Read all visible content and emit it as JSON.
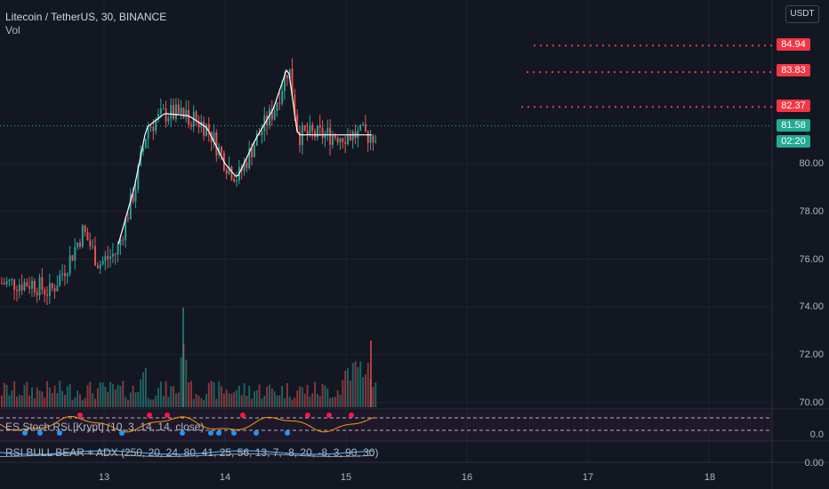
{
  "header": {
    "title": "Litecoin / TetherUS, 30, BINANCE",
    "vol_label": "Vol"
  },
  "currency_button": "USDT",
  "indicators": {
    "stoch_rsi": "ES Stoch RSi [Krypt] (10, 3, 14, 14, close)",
    "rsi_adx": "RSI BULL BEAR + ADX (250, 20, 24, 80, 41, 25, 56, 13, 7, -8, 20, -8, 3, 90, 30)"
  },
  "price_axis": {
    "labels": [
      "80.00",
      "78.00",
      "76.00",
      "74.00",
      "72.00",
      "70.00"
    ],
    "pane2_label": "0.0",
    "pane3_label": "0.00"
  },
  "time_axis": {
    "labels": [
      "13",
      "14",
      "15",
      "16",
      "17",
      "18"
    ]
  },
  "price_tags": {
    "level_1": "84.94",
    "level_2": "83.83",
    "level_3": "82.37",
    "current_price": "81.58",
    "countdown": "02:20"
  },
  "colors": {
    "background": "#131722",
    "up": "#26a69a",
    "down": "#ef5350",
    "level_line": "#f23645",
    "current": "#22ab94",
    "grid": "#1e222d",
    "text": "#d1d4dc"
  },
  "chart_data": {
    "type": "candlestick",
    "symbol": "Litecoin / TetherUS",
    "timeframe": "30",
    "exchange": "BINANCE",
    "x_ticks": [
      "13",
      "14",
      "15",
      "16",
      "17",
      "18"
    ],
    "y_range": [
      69.8,
      84.9
    ],
    "y_ticks": [
      70,
      72,
      74,
      76,
      78,
      80
    ],
    "resistance_levels": [
      84.94,
      83.83,
      82.37
    ],
    "last_price": 81.58,
    "approx_path": [
      {
        "x": 12.4,
        "y": 75.0
      },
      {
        "x": 12.55,
        "y": 74.6
      },
      {
        "x": 12.7,
        "y": 75.9
      },
      {
        "x": 12.82,
        "y": 77.2
      },
      {
        "x": 12.95,
        "y": 75.8
      },
      {
        "x": 13.1,
        "y": 76.3
      },
      {
        "x": 13.25,
        "y": 79.0
      },
      {
        "x": 13.35,
        "y": 81.5
      },
      {
        "x": 13.5,
        "y": 82.1
      },
      {
        "x": 13.7,
        "y": 82.0
      },
      {
        "x": 13.85,
        "y": 81.5
      },
      {
        "x": 14.0,
        "y": 80.0
      },
      {
        "x": 14.1,
        "y": 79.4
      },
      {
        "x": 14.25,
        "y": 81.0
      },
      {
        "x": 14.4,
        "y": 82.3
      },
      {
        "x": 14.52,
        "y": 84.1
      },
      {
        "x": 14.6,
        "y": 81.2
      }
    ],
    "grid": true
  }
}
